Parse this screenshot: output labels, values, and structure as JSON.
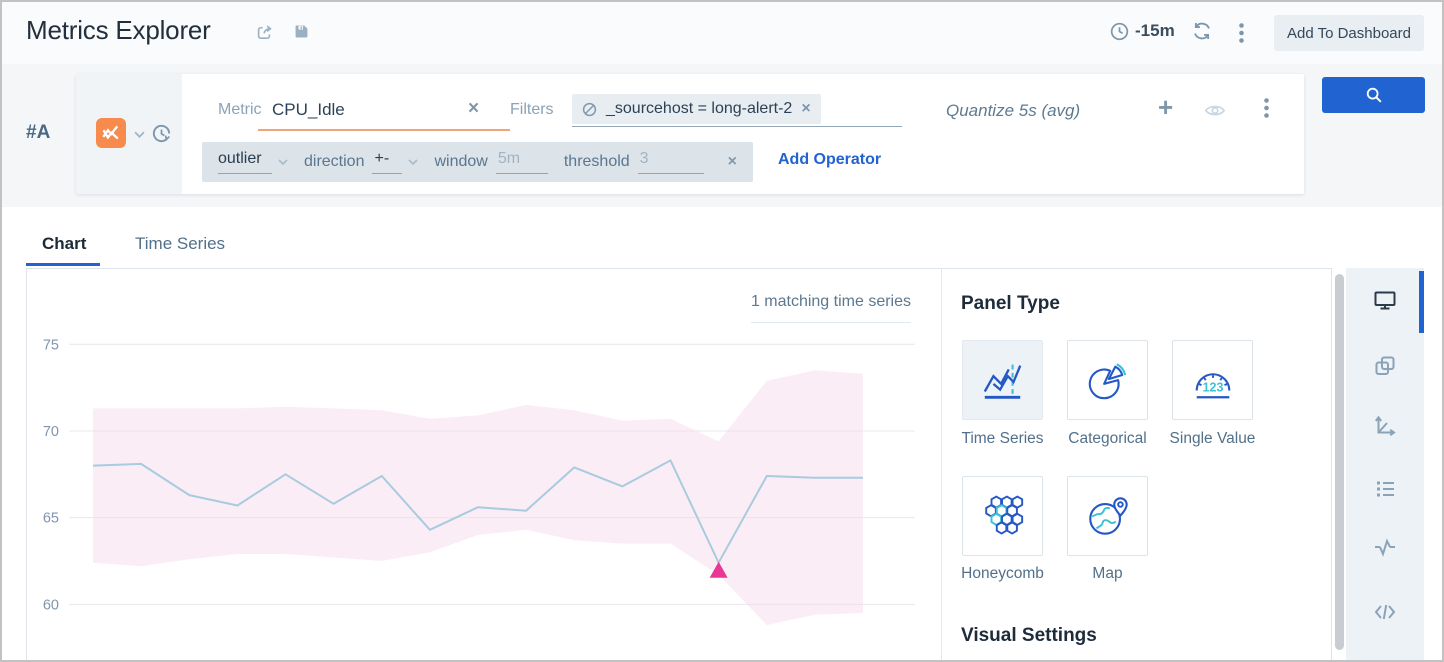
{
  "header": {
    "title": "Metrics Explorer",
    "time_range": "-15m",
    "add_to_dashboard_label": "Add To Dashboard"
  },
  "query": {
    "row_label": "#A",
    "metric_label": "Metric",
    "metric_value": "CPU_Idle",
    "filters_label": "Filters",
    "filter_value": "_sourcehost = long-alert-2",
    "quantize_label": "Quantize 5s (avg)",
    "operator_name": "outlier",
    "op_params": [
      {
        "label": "direction",
        "value": "+-"
      },
      {
        "label": "window",
        "value": "5m"
      },
      {
        "label": "threshold",
        "value": "3"
      }
    ],
    "add_operator_label": "Add Operator"
  },
  "tabs": [
    {
      "label": "Chart"
    },
    {
      "label": "Time Series"
    }
  ],
  "panel": {
    "title": "Panel Type",
    "types": [
      {
        "label": "Time Series",
        "icon": "time-series-panel-icon",
        "selected": true
      },
      {
        "label": "Categorical",
        "icon": "categorical-panel-icon",
        "selected": false
      },
      {
        "label": "Single Value",
        "icon": "single-value-panel-icon",
        "selected": false
      },
      {
        "label": "Honeycomb",
        "icon": "honeycomb-panel-icon",
        "selected": false
      },
      {
        "label": "Map",
        "icon": "map-panel-icon",
        "selected": false
      }
    ],
    "visual_settings_title": "Visual Settings"
  },
  "right_toolbar_icons": [
    "display-icon",
    "overlay-panels-icon",
    "axes-icon",
    "legend-list-icon",
    "anomaly-line-icon",
    "code-icon"
  ],
  "glyphs": {
    "plus": "+",
    "close": "×"
  },
  "colors": {
    "accent_blue": "#2163d0",
    "orange_metric": "#f68b4d",
    "band_pink": "#f6d7e8",
    "anomaly_magenta": "#ea3795",
    "line_blue": "#a9cbdf"
  },
  "chart_data": {
    "type": "line",
    "title": "",
    "annotation": "1 matching time series",
    "series": [
      {
        "name": "CPU_Idle",
        "values": [
          68.0,
          68.1,
          66.3,
          65.7,
          67.5,
          65.8,
          67.4,
          64.3,
          65.6,
          65.4,
          67.9,
          66.8,
          68.3,
          62.4,
          67.4,
          67.3,
          67.3
        ]
      }
    ],
    "outlier_band": {
      "upper": [
        71.3,
        71.3,
        71.3,
        71.3,
        71.4,
        71.3,
        71.2,
        70.7,
        70.9,
        71.5,
        71.2,
        70.6,
        70.7,
        69.4,
        72.9,
        73.5,
        73.3
      ],
      "lower": [
        62.4,
        62.2,
        62.6,
        62.9,
        62.9,
        62.7,
        62.5,
        63.0,
        64.0,
        64.3,
        63.7,
        63.5,
        63.5,
        61.7,
        58.8,
        59.4,
        59.5
      ]
    },
    "anomaly_index": 13,
    "yticks": [
      60,
      65,
      70,
      75
    ],
    "ylim": [
      56.5,
      76.4
    ],
    "grid": true,
    "legend_position": "none",
    "colors": {
      "line": "#a9cbdf",
      "band": "#f6d7e8",
      "anomaly": "#ea3795",
      "grid": "#e4e9ed",
      "tick": "#8095ac"
    }
  }
}
